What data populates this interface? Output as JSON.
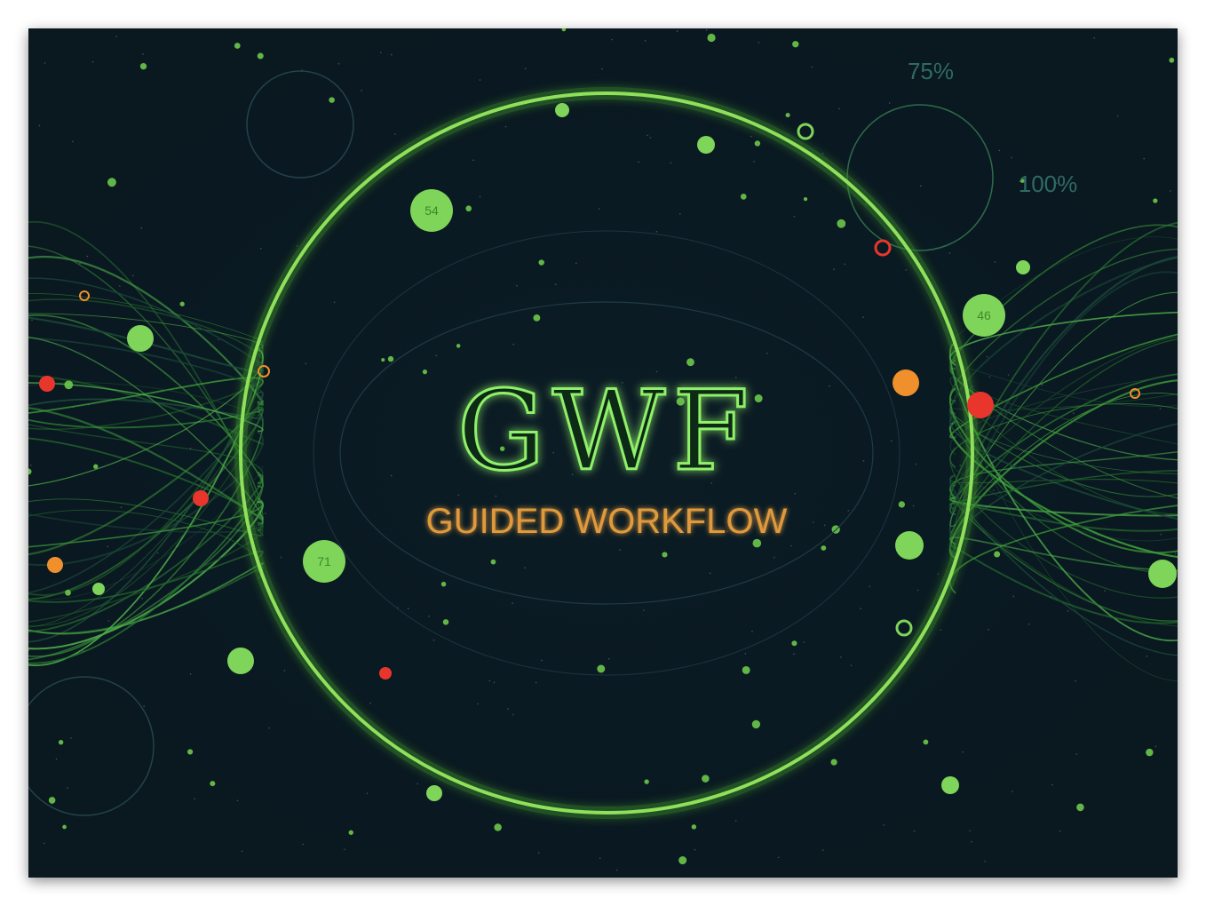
{
  "title": "GWF",
  "subtitle": "GUIDED WORKFLOW",
  "annotations": [
    "75%",
    "100%"
  ],
  "nodes": [
    {
      "label": "54"
    },
    {
      "label": "46"
    },
    {
      "label": "71"
    }
  ]
}
